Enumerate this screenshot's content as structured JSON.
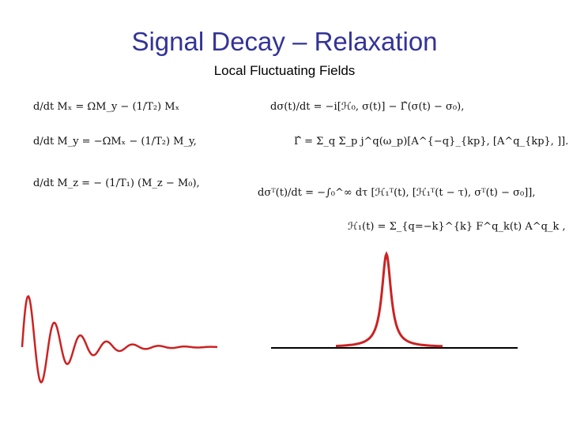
{
  "header": {
    "title": "Signal Decay – Relaxation",
    "subtitle": "Local Fluctuating Fields"
  },
  "equations": {
    "left": [
      "d/dt Mₓ  =  ΩM_y − (1/T₂) Mₓ",
      "d/dt M_y  =  −ΩMₓ − (1/T₂) M_y,",
      "d/dt M_z = − (1/T₁) (M_z − M₀),"
    ],
    "right": [
      "dσ(t)/dt = −i[ℋ₀, σ(t)] − Γ̂(σ(t) − σ₀),",
      "Γ̂ = Σ_q Σ_p j^q(ω_p)[A^{−q}_{kp}, [A^q_{kp}, ]].",
      "dσᵀ(t)/dt = −∫₀^∞ dτ [ℋ₁ᵀ(t), [ℋ₁ᵀ(t − τ), σᵀ(t) − σ₀]],",
      "ℋ₁(t) = Σ_{q=−k}^{k} F^q_k(t) A^q_k ,"
    ]
  }
}
